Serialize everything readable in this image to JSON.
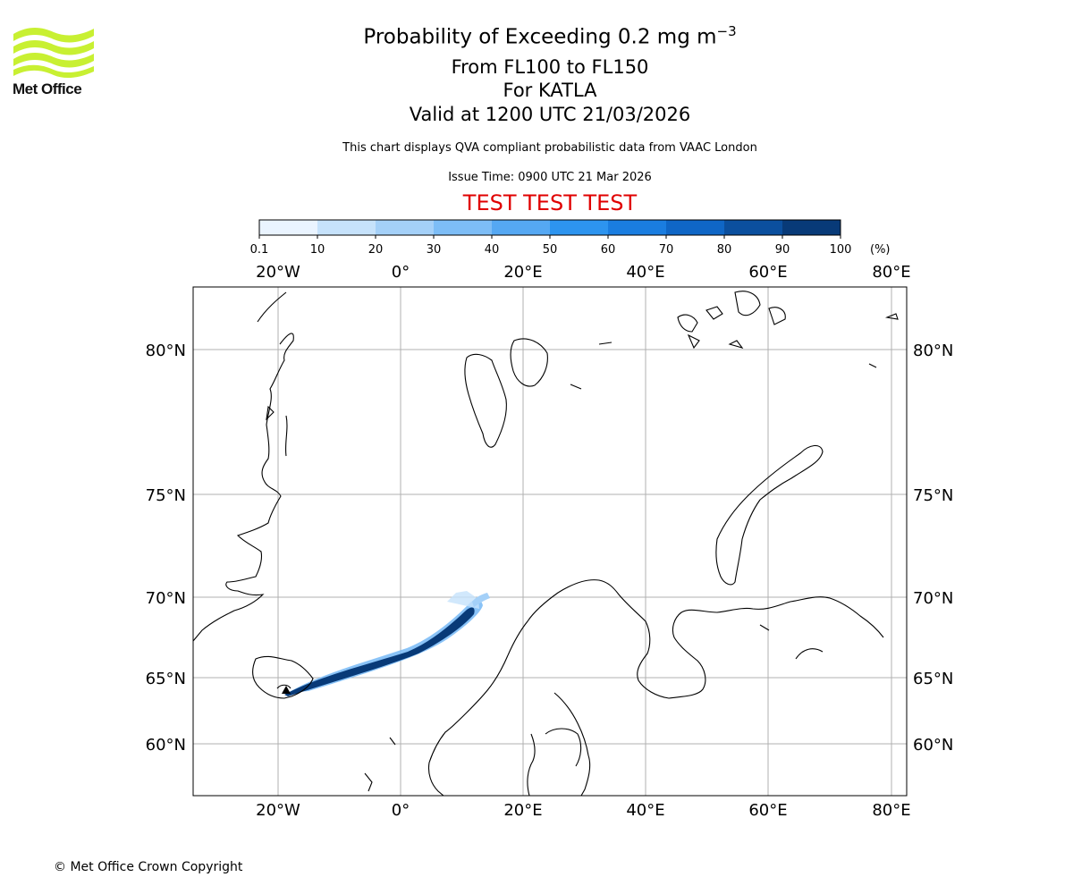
{
  "logo": {
    "text": "Met Office",
    "color": "#c8f032"
  },
  "title": {
    "line1_main": "Probability of Exceeding 0.2 mg m",
    "line1_sup": "−3",
    "line2": "From FL100 to FL150",
    "line3": "For KATLA",
    "line4": "Valid at 1200 UTC 21/03/2026"
  },
  "description": "This chart displays QVA compliant probabilistic data from VAAC London",
  "issue_time": "Issue Time: 0900 UTC 21 Mar 2026",
  "test_banner": "TEST TEST TEST",
  "test_color": "#e00000",
  "colorbar": {
    "ticks": [
      "0.1",
      "10",
      "20",
      "30",
      "40",
      "50",
      "60",
      "70",
      "80",
      "90",
      "100"
    ],
    "unit": "(%)",
    "colors": [
      "#eaf4ff",
      "#c6e2fb",
      "#a4d0f8",
      "#7dbdf6",
      "#55a8f3",
      "#2d94ef",
      "#1a7de0",
      "#0f66c6",
      "#0b4f9e",
      "#083a78",
      "#062a56"
    ]
  },
  "map": {
    "lon_labels": [
      "20°W",
      "0°",
      "20°E",
      "40°E",
      "60°E",
      "80°E"
    ],
    "lat_labels": [
      "80°N",
      "75°N",
      "70°N",
      "65°N",
      "60°N"
    ],
    "volcano": "KATLA"
  },
  "copyright": "© Met Office Crown Copyright"
}
